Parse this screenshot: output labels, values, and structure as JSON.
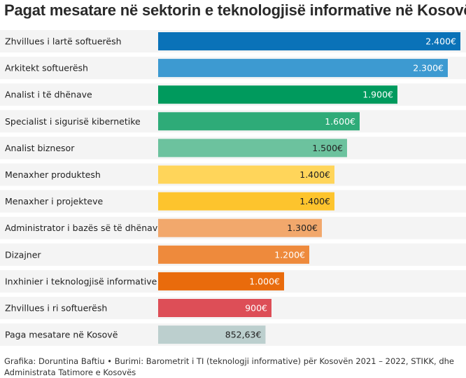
{
  "title": "Pagat mesatare në sektorin e teknologjisë informative në Kosovë",
  "footer": "Grafika: Doruntina Baftiu • Burimi: Barometrit i TI (teknologji informative) për Kosovën 2021 – 2022, STIKK, dhe Administrata Tatimore e Kosovës",
  "chart_data": {
    "type": "bar",
    "orientation": "horizontal",
    "xlim": [
      0,
      2400
    ],
    "grid": false,
    "categories": [
      "Zhvillues i lartë softuerësh",
      "Arkitekt softuerësh",
      "Analist i të dhënave",
      "Specialist i sigurisë kibernetike",
      "Analist biznesor",
      "Menaxher produktesh",
      "Menaxher i projekteve",
      "Administrator i bazës së të dhënave",
      "Dizajner",
      "Inxhinier i teknologjisë informative",
      "Zhvillues i ri softuerësh",
      "Paga mesatare në Kosovë"
    ],
    "values": [
      2400,
      2300,
      1900,
      1600,
      1500,
      1400,
      1400,
      1300,
      1200,
      1000,
      900,
      852.63
    ],
    "value_labels": [
      "2.400€",
      "2.300€",
      "1.900€",
      "1.600€",
      "1.500€",
      "1.400€",
      "1.400€",
      "1.300€",
      "1.200€",
      "1.000€",
      "900€",
      "852,63€"
    ],
    "colors": [
      "#0a72b8",
      "#3d9ad1",
      "#009a5d",
      "#2eab78",
      "#6cc29e",
      "#ffd55a",
      "#fdc42d",
      "#f2a86c",
      "#ee8a3c",
      "#e96b0c",
      "#dd4e57",
      "#bccfce"
    ],
    "label_colors": [
      "#ffffff",
      "#ffffff",
      "#ffffff",
      "#ffffff",
      "#222222",
      "#222222",
      "#222222",
      "#222222",
      "#ffffff",
      "#ffffff",
      "#ffffff",
      "#222222"
    ]
  }
}
